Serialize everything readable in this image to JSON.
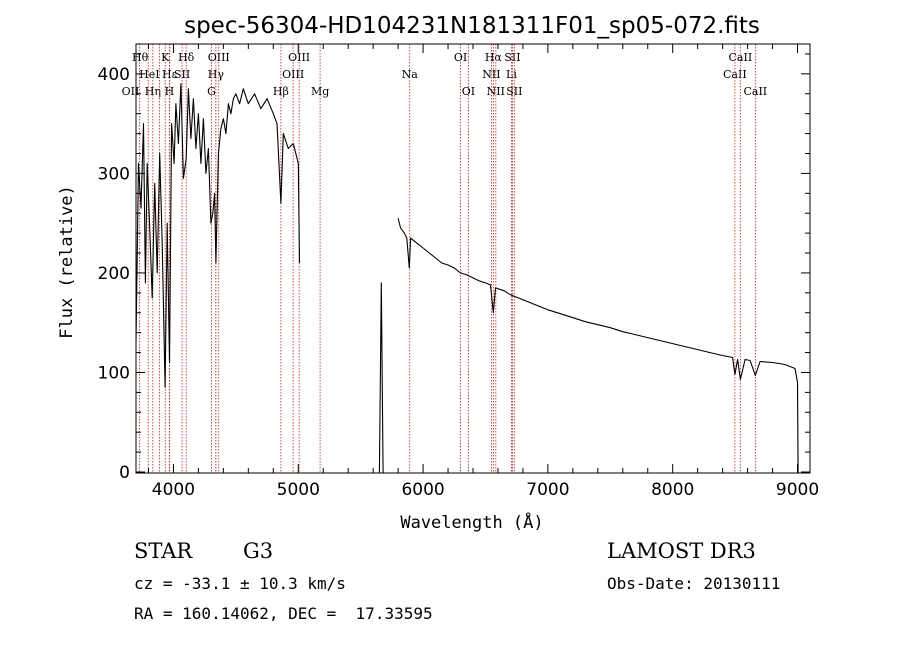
{
  "chart_data": {
    "type": "line",
    "title": "spec-56304-HD104231N181311F01_sp05-072.fits",
    "xlabel": "Wavelength (Å)",
    "ylabel": "Flux (relative)",
    "xlim": [
      3700,
      9100
    ],
    "ylim": [
      -10,
      4300
    ],
    "xticks": [
      4000,
      5000,
      6000,
      7000,
      8000,
      9000
    ],
    "yticks": [
      0,
      100,
      200,
      300,
      400
    ],
    "ytick_scale": 10,
    "series": [
      {
        "name": "flux",
        "segments": [
          [
            [
              3700,
              1300
            ],
            [
              3720,
              3100
            ],
            [
              3740,
              2650
            ],
            [
              3760,
              3500
            ],
            [
              3775,
              1900
            ],
            [
              3790,
              3100
            ],
            [
              3810,
              2450
            ],
            [
              3830,
              1750
            ],
            [
              3850,
              2900
            ],
            [
              3870,
              2000
            ],
            [
              3890,
              3200
            ],
            [
              3910,
              2300
            ],
            [
              3933,
              850
            ],
            [
              3950,
              2500
            ],
            [
              3968,
              1100
            ],
            [
              3985,
              3500
            ],
            [
              4005,
              3100
            ],
            [
              4020,
              3700
            ],
            [
              4040,
              3300
            ],
            [
              4060,
              3900
            ],
            [
              4080,
              2950
            ],
            [
              4102,
              3150
            ],
            [
              4120,
              3850
            ],
            [
              4140,
              3350
            ],
            [
              4160,
              3750
            ],
            [
              4180,
              3250
            ],
            [
              4200,
              3600
            ],
            [
              4220,
              3100
            ],
            [
              4240,
              3550
            ],
            [
              4260,
              3000
            ],
            [
              4280,
              3250
            ],
            [
              4300,
              2500
            ],
            [
              4315,
              2600
            ],
            [
              4330,
              2800
            ],
            [
              4340,
              2100
            ],
            [
              4360,
              3200
            ],
            [
              4380,
              3450
            ],
            [
              4400,
              3550
            ],
            [
              4420,
              3400
            ],
            [
              4440,
              3700
            ],
            [
              4460,
              3600
            ],
            [
              4480,
              3750
            ],
            [
              4500,
              3800
            ],
            [
              4530,
              3700
            ],
            [
              4560,
              3850
            ],
            [
              4600,
              3700
            ],
            [
              4650,
              3800
            ],
            [
              4700,
              3650
            ],
            [
              4750,
              3750
            ],
            [
              4800,
              3600
            ],
            [
              4830,
              3500
            ],
            [
              4861,
              2700
            ],
            [
              4880,
              3400
            ],
            [
              4920,
              3250
            ],
            [
              4960,
              3300
            ],
            [
              5000,
              3100
            ],
            [
              5010,
              2100
            ]
          ],
          [
            [
              5650,
              -60
            ],
            [
              5665,
              1900
            ],
            [
              5680,
              -60
            ]
          ],
          [
            [
              5800,
              2550
            ],
            [
              5820,
              2450
            ],
            [
              5850,
              2400
            ],
            [
              5870,
              2350
            ],
            [
              5890,
              2050
            ],
            [
              5900,
              2350
            ],
            [
              5950,
              2300
            ],
            [
              6000,
              2250
            ],
            [
              6050,
              2200
            ],
            [
              6100,
              2150
            ],
            [
              6150,
              2100
            ],
            [
              6200,
              2080
            ],
            [
              6250,
              2050
            ],
            [
              6300,
              2000
            ],
            [
              6350,
              1980
            ],
            [
              6400,
              1950
            ],
            [
              6450,
              1920
            ],
            [
              6500,
              1900
            ],
            [
              6540,
              1880
            ],
            [
              6563,
              1600
            ],
            [
              6580,
              1850
            ],
            [
              6650,
              1820
            ],
            [
              6700,
              1780
            ],
            [
              6800,
              1730
            ],
            [
              6900,
              1680
            ],
            [
              7000,
              1630
            ],
            [
              7100,
              1590
            ],
            [
              7200,
              1550
            ],
            [
              7300,
              1510
            ],
            [
              7400,
              1480
            ],
            [
              7500,
              1450
            ],
            [
              7600,
              1410
            ],
            [
              7700,
              1380
            ],
            [
              7800,
              1350
            ],
            [
              7900,
              1320
            ],
            [
              8000,
              1290
            ],
            [
              8100,
              1260
            ],
            [
              8200,
              1230
            ],
            [
              8300,
              1200
            ],
            [
              8400,
              1170
            ],
            [
              8480,
              1150
            ],
            [
              8498,
              980
            ],
            [
              8520,
              1130
            ],
            [
              8542,
              930
            ],
            [
              8580,
              1130
            ],
            [
              8620,
              1120
            ],
            [
              8662,
              970
            ],
            [
              8700,
              1110
            ],
            [
              8800,
              1100
            ],
            [
              8900,
              1080
            ],
            [
              8980,
              1040
            ],
            [
              9000,
              900
            ],
            [
              9005,
              -60
            ]
          ]
        ]
      }
    ],
    "lines": [
      {
        "label": "OII",
        "x": 3727,
        "row": 3,
        "anchor": "end"
      },
      {
        "label": "Hθ",
        "x": 3798,
        "row": 1,
        "anchor": "end"
      },
      {
        "label": "Hη",
        "x": 3835,
        "row": 3,
        "anchor": "middle"
      },
      {
        "label": "HeI",
        "x": 3889,
        "row": 2,
        "anchor": "end"
      },
      {
        "label": "K",
        "x": 3934,
        "row": 1,
        "anchor": "middle"
      },
      {
        "label": "H",
        "x": 3968,
        "row": 3,
        "anchor": "middle"
      },
      {
        "label": "Hε",
        "x": 3970,
        "row": 2,
        "anchor": "middle"
      },
      {
        "label": "SII",
        "x": 4069,
        "row": 2,
        "anchor": "middle"
      },
      {
        "label": "Hδ",
        "x": 4102,
        "row": 1,
        "anchor": "middle"
      },
      {
        "label": "G",
        "x": 4305,
        "row": 3,
        "anchor": "middle"
      },
      {
        "label": "Hγ",
        "x": 4340,
        "row": 2,
        "anchor": "middle"
      },
      {
        "label": "OIII",
        "x": 4363,
        "row": 1,
        "anchor": "middle"
      },
      {
        "label": "Hβ",
        "x": 4861,
        "row": 3,
        "anchor": "middle"
      },
      {
        "label": "OIII",
        "x": 4959,
        "row": 2,
        "anchor": "middle"
      },
      {
        "label": "OIII",
        "x": 5007,
        "row": 1,
        "anchor": "middle"
      },
      {
        "label": "Mg",
        "x": 5175,
        "row": 3,
        "anchor": "middle"
      },
      {
        "label": "Na",
        "x": 5893,
        "row": 2,
        "anchor": "middle"
      },
      {
        "label": "OI",
        "x": 6300,
        "row": 1,
        "anchor": "middle"
      },
      {
        "label": "OI",
        "x": 6363,
        "row": 3,
        "anchor": "middle"
      },
      {
        "label": "NII",
        "x": 6548,
        "row": 2,
        "anchor": "middle"
      },
      {
        "label": "Hα",
        "x": 6563,
        "row": 1,
        "anchor": "middle"
      },
      {
        "label": "NII",
        "x": 6583,
        "row": 3,
        "anchor": "middle"
      },
      {
        "label": "Li",
        "x": 6708,
        "row": 2,
        "anchor": "middle"
      },
      {
        "label": "SII",
        "x": 6716,
        "row": 1,
        "anchor": "middle"
      },
      {
        "label": "SII",
        "x": 6731,
        "row": 3,
        "anchor": "middle"
      },
      {
        "label": "CaII",
        "x": 8498,
        "row": 2,
        "anchor": "middle"
      },
      {
        "label": "CaII",
        "x": 8542,
        "row": 1,
        "anchor": "middle"
      },
      {
        "label": "CaII",
        "x": 8662,
        "row": 3,
        "anchor": "middle"
      }
    ],
    "colors": {
      "spectrum": "#000000",
      "line_marker": "#b22222",
      "axis": "#000000"
    }
  },
  "info": {
    "object_class": "STAR",
    "subclass": "G3",
    "survey": "LAMOST DR3",
    "redshift": "cz = -33.1 ± 10.3 km/s",
    "obs_date": "Obs-Date: 20130111",
    "coords": "RA = 160.14062, DEC =  17.33595"
  }
}
